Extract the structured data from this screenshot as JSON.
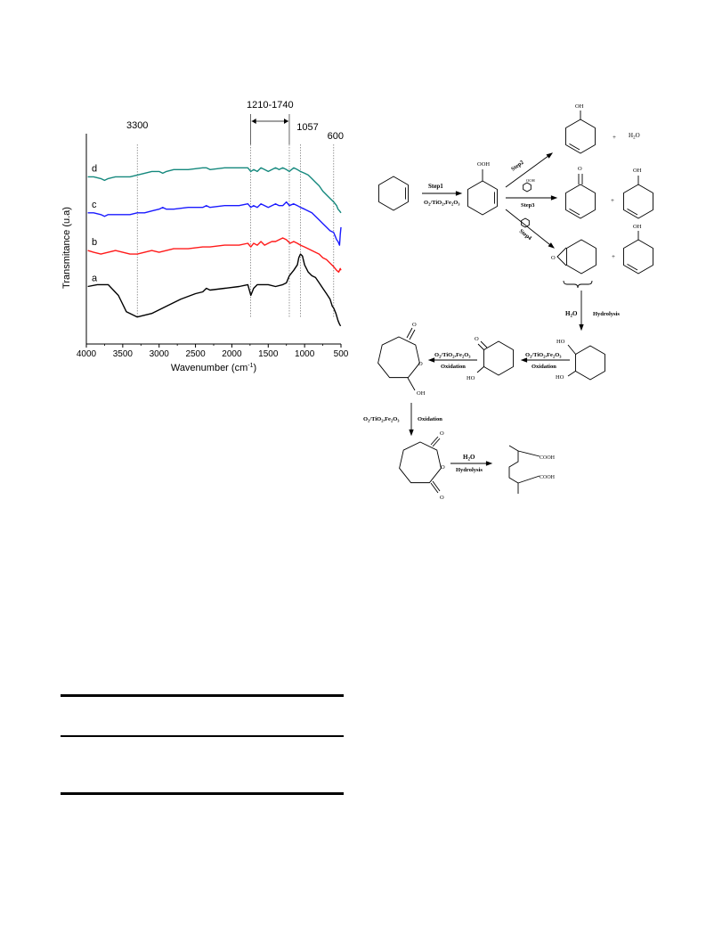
{
  "chart_data": {
    "type": "line",
    "title": "",
    "xlabel": "Wavenumber (cm",
    "xlabel_sup": "-1",
    "xlabel_close": ")",
    "ylabel": "Transmitance (u.a)",
    "xlim": [
      4000,
      500
    ],
    "x_ticks": [
      4000,
      3500,
      3000,
      2500,
      2000,
      1500,
      1000,
      500
    ],
    "y_ticks_shown": false,
    "series": [
      {
        "name": "a",
        "color": "#000000",
        "offset": 0.0,
        "x": [
          3980,
          3850,
          3700,
          3560,
          3450,
          3300,
          3100,
          2900,
          2700,
          2500,
          2400,
          2350,
          2300,
          2100,
          1900,
          1780,
          1740,
          1700,
          1650,
          1600,
          1500,
          1400,
          1300,
          1250,
          1210,
          1150,
          1100,
          1080,
          1057,
          1030,
          1000,
          950,
          900,
          850,
          800,
          750,
          700,
          650,
          620,
          600,
          570,
          540,
          520,
          505
        ],
        "y": [
          0.77,
          0.78,
          0.78,
          0.72,
          0.63,
          0.6,
          0.62,
          0.66,
          0.7,
          0.73,
          0.74,
          0.76,
          0.75,
          0.76,
          0.77,
          0.78,
          0.72,
          0.76,
          0.78,
          0.78,
          0.78,
          0.77,
          0.78,
          0.79,
          0.83,
          0.86,
          0.89,
          0.93,
          0.95,
          0.94,
          0.89,
          0.85,
          0.83,
          0.82,
          0.79,
          0.76,
          0.73,
          0.7,
          0.66,
          0.65,
          0.62,
          0.58,
          0.56,
          0.55
        ]
      },
      {
        "name": "b",
        "color": "#ff1a1a",
        "offset": 0.0,
        "x": [
          3980,
          3900,
          3800,
          3700,
          3600,
          3500,
          3400,
          3300,
          3200,
          3100,
          3000,
          2900,
          2800,
          2600,
          2400,
          2350,
          2300,
          2100,
          1900,
          1780,
          1740,
          1700,
          1650,
          1600,
          1550,
          1500,
          1450,
          1400,
          1350,
          1300,
          1250,
          1200,
          1150,
          1100,
          1057,
          1000,
          950,
          900,
          850,
          800,
          750,
          700,
          650,
          600,
          560,
          530,
          510,
          500
        ],
        "y": [
          0.97,
          0.96,
          0.95,
          0.96,
          0.97,
          0.96,
          0.95,
          0.95,
          0.96,
          0.97,
          0.96,
          0.97,
          0.98,
          0.98,
          0.99,
          0.99,
          0.99,
          1.0,
          1.0,
          1.01,
          0.99,
          1.01,
          1.0,
          1.02,
          1.0,
          1.01,
          1.02,
          1.02,
          1.03,
          1.04,
          1.03,
          1.01,
          1.02,
          1.01,
          1.0,
          0.99,
          0.98,
          0.97,
          0.96,
          0.95,
          0.93,
          0.92,
          0.9,
          0.88,
          0.86,
          0.85,
          0.87,
          0.86
        ]
      },
      {
        "name": "c",
        "color": "#1a1aff",
        "offset": 0.0,
        "x": [
          3980,
          3900,
          3800,
          3750,
          3700,
          3600,
          3500,
          3400,
          3300,
          3200,
          3100,
          3000,
          2950,
          2900,
          2800,
          2600,
          2400,
          2350,
          2300,
          2100,
          1900,
          1780,
          1740,
          1700,
          1650,
          1600,
          1550,
          1500,
          1450,
          1400,
          1350,
          1300,
          1250,
          1210,
          1150,
          1100,
          1057,
          1000,
          950,
          900,
          850,
          800,
          750,
          700,
          650,
          600,
          580,
          560,
          540,
          520,
          510,
          500
        ],
        "y": [
          1.18,
          1.18,
          1.17,
          1.16,
          1.17,
          1.17,
          1.17,
          1.17,
          1.18,
          1.18,
          1.19,
          1.2,
          1.21,
          1.2,
          1.2,
          1.21,
          1.21,
          1.22,
          1.21,
          1.22,
          1.22,
          1.23,
          1.21,
          1.22,
          1.21,
          1.23,
          1.22,
          1.21,
          1.22,
          1.23,
          1.22,
          1.22,
          1.24,
          1.22,
          1.23,
          1.22,
          1.21,
          1.2,
          1.19,
          1.18,
          1.16,
          1.14,
          1.12,
          1.1,
          1.08,
          1.07,
          1.05,
          1.03,
          1.02,
          1.0,
          1.06,
          1.1
        ]
      },
      {
        "name": "d",
        "color": "#14887d",
        "offset": 0.0,
        "x": [
          3980,
          3900,
          3800,
          3750,
          3700,
          3600,
          3500,
          3400,
          3300,
          3200,
          3100,
          3000,
          2950,
          2900,
          2800,
          2600,
          2400,
          2350,
          2300,
          2100,
          1900,
          1780,
          1740,
          1700,
          1650,
          1600,
          1550,
          1500,
          1450,
          1400,
          1350,
          1300,
          1250,
          1210,
          1150,
          1100,
          1057,
          1000,
          950,
          900,
          850,
          800,
          750,
          700,
          650,
          600,
          580,
          560,
          540,
          520,
          500
        ],
        "y": [
          1.38,
          1.38,
          1.37,
          1.36,
          1.37,
          1.38,
          1.38,
          1.38,
          1.39,
          1.4,
          1.41,
          1.41,
          1.4,
          1.41,
          1.42,
          1.42,
          1.43,
          1.43,
          1.42,
          1.43,
          1.43,
          1.43,
          1.41,
          1.42,
          1.41,
          1.43,
          1.42,
          1.41,
          1.42,
          1.43,
          1.42,
          1.43,
          1.42,
          1.41,
          1.43,
          1.42,
          1.41,
          1.4,
          1.39,
          1.37,
          1.35,
          1.33,
          1.3,
          1.28,
          1.26,
          1.24,
          1.23,
          1.22,
          1.2,
          1.19,
          1.18
        ]
      }
    ],
    "ylim": [
      0.45,
      1.62
    ],
    "annotations": [
      {
        "label": "3300",
        "x": 3300
      },
      {
        "label": "1210-1740",
        "x_from": 1740,
        "x_to": 1210
      },
      {
        "label": "1057",
        "x": 1057
      },
      {
        "label": "600",
        "x": 600
      }
    ]
  },
  "scheme": {
    "step1": "Step1",
    "step1_cond": "O",
    "step1_cond_full": "O2/TiO2,Fe2O3",
    "step2": "Step2",
    "step3": "Step3",
    "step4": "Step4",
    "ooh": "OOH",
    "oh": "OH",
    "ho": "HO",
    "o": "O",
    "plus": "+",
    "h2o": "H",
    "h2o_sub": "2",
    "h2o_end": "O",
    "hydrolysis": "Hydrolysis",
    "oxidation": "Oxidation",
    "cooh": "COOH",
    "cond_o": "O",
    "cond_sub2": "2",
    "cond_tio": "/TiO",
    "cond_fe": ",Fe",
    "cond_sub3": "3",
    "cond_o3": "O"
  }
}
